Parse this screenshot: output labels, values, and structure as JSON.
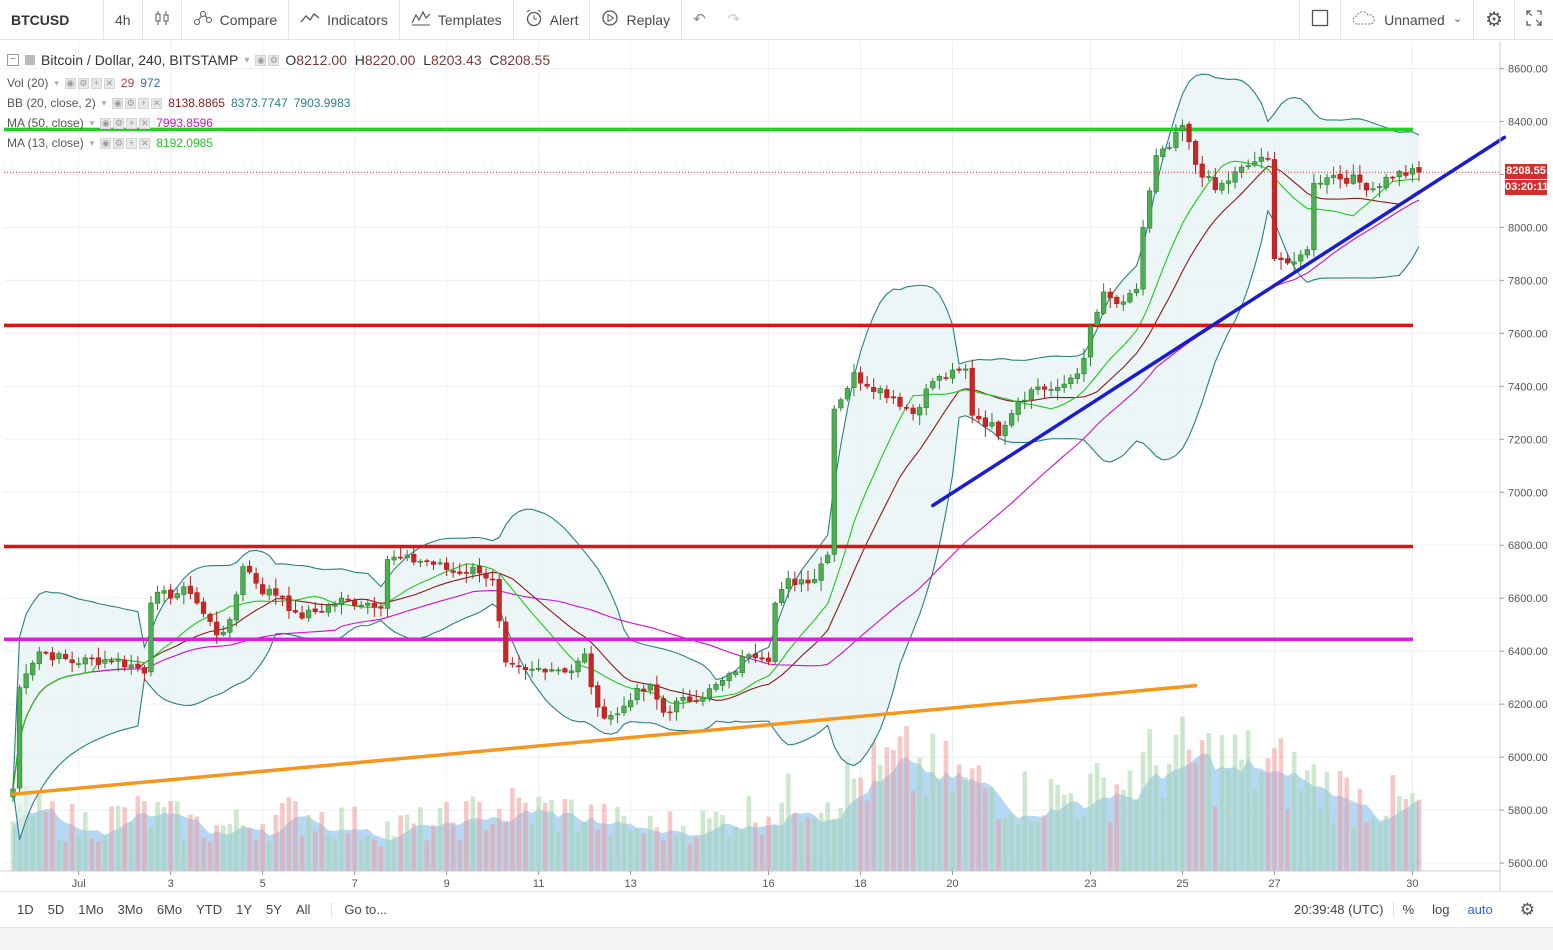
{
  "toolbar": {
    "symbol": "BTCUSD",
    "interval": "4h",
    "compare": "Compare",
    "indicators": "Indicators",
    "templates": "Templates",
    "alert": "Alert",
    "replay": "Replay",
    "layout_name": "Unnamed"
  },
  "legend": {
    "title": "Bitcoin / Dollar, 240, BITSTAMP",
    "o_label": "O",
    "o": "8212.00",
    "h_label": "H",
    "h": "8220.00",
    "l_label": "L",
    "l": "8203.43",
    "c_label": "C",
    "c": "8208.55",
    "vol": {
      "name": "Vol (20)",
      "v1": "29",
      "v2": "972",
      "c1": "#b03a3a",
      "c2": "#2a6fb8"
    },
    "bb": {
      "name": "BB (20, close, 2)",
      "v1": "8138.8865",
      "v2": "8373.7747",
      "v3": "7903.9983",
      "c1": "#8b1a1a",
      "c2": "#2a7f7f",
      "c3": "#2a7f7f"
    },
    "ma50": {
      "name": "MA (50, close)",
      "v1": "7993.8596",
      "c1": "#d010c8"
    },
    "ma13": {
      "name": "MA (13, close)",
      "v1": "8192.0985",
      "c1": "#1ec81e"
    }
  },
  "price_tags": {
    "price": "8208.55",
    "countdown": "03:20:11"
  },
  "bottom": {
    "ranges": [
      "1D",
      "5D",
      "1Mo",
      "3Mo",
      "6Mo",
      "YTD",
      "1Y",
      "5Y",
      "All"
    ],
    "goto": "Go to...",
    "time": "20:39:48 (UTC)",
    "percent": "%",
    "log": "log",
    "auto": "auto"
  },
  "chart_data": {
    "type": "candlestick",
    "title": "Bitcoin / Dollar, 240, BITSTAMP",
    "y_ticks": [
      "8600.00",
      "8400.00",
      "8200.00",
      "8000.00",
      "7800.00",
      "7600.00",
      "7400.00",
      "7200.00",
      "7000.00",
      "6800.00",
      "6600.00",
      "6400.00",
      "6200.00",
      "6000.00",
      "5800.00",
      "5600.00"
    ],
    "ylim": [
      5570,
      8700
    ],
    "x_ticks": [
      {
        "label": "Jul",
        "i": 10
      },
      {
        "label": "3",
        "i": 24
      },
      {
        "label": "5",
        "i": 38
      },
      {
        "label": "7",
        "i": 52
      },
      {
        "label": "9",
        "i": 66
      },
      {
        "label": "11",
        "i": 80
      },
      {
        "label": "13",
        "i": 94
      },
      {
        "label": "16",
        "i": 115
      },
      {
        "label": "18",
        "i": 129
      },
      {
        "label": "20",
        "i": 143
      },
      {
        "label": "23",
        "i": 164
      },
      {
        "label": "25",
        "i": 178
      },
      {
        "label": "27",
        "i": 192
      },
      {
        "label": "30",
        "i": 213
      }
    ],
    "x_count": 215,
    "anchors": [
      [
        0,
        5880
      ],
      [
        1,
        6260
      ],
      [
        2,
        6330
      ],
      [
        4,
        6400
      ],
      [
        9,
        6360
      ],
      [
        15,
        6370
      ],
      [
        20,
        6330
      ],
      [
        21,
        6600
      ],
      [
        27,
        6630
      ],
      [
        29,
        6540
      ],
      [
        31,
        6470
      ],
      [
        33,
        6500
      ],
      [
        35,
        6730
      ],
      [
        38,
        6630
      ],
      [
        41,
        6610
      ],
      [
        43,
        6530
      ],
      [
        45,
        6540
      ],
      [
        50,
        6590
      ],
      [
        56,
        6580
      ],
      [
        57,
        6750
      ],
      [
        63,
        6740
      ],
      [
        67,
        6700
      ],
      [
        71,
        6710
      ],
      [
        73,
        6660
      ],
      [
        75,
        6340
      ],
      [
        78,
        6320
      ],
      [
        81,
        6340
      ],
      [
        85,
        6330
      ],
      [
        87,
        6380
      ],
      [
        89,
        6170
      ],
      [
        92,
        6160
      ],
      [
        94,
        6230
      ],
      [
        97,
        6260
      ],
      [
        99,
        6170
      ],
      [
        101,
        6200
      ],
      [
        106,
        6250
      ],
      [
        109,
        6300
      ],
      [
        112,
        6400
      ],
      [
        115,
        6380
      ],
      [
        116,
        6580
      ],
      [
        118,
        6660
      ],
      [
        122,
        6680
      ],
      [
        124,
        6780
      ],
      [
        125,
        7320
      ],
      [
        128,
        7440
      ],
      [
        131,
        7400
      ],
      [
        134,
        7360
      ],
      [
        137,
        7300
      ],
      [
        140,
        7420
      ],
      [
        145,
        7460
      ],
      [
        146,
        7300
      ],
      [
        150,
        7230
      ],
      [
        153,
        7350
      ],
      [
        156,
        7400
      ],
      [
        159,
        7380
      ],
      [
        163,
        7490
      ],
      [
        164,
        7620
      ],
      [
        166,
        7740
      ],
      [
        169,
        7700
      ],
      [
        171,
        7770
      ],
      [
        172,
        8000
      ],
      [
        174,
        8260
      ],
      [
        176,
        8300
      ],
      [
        178,
        8380
      ],
      [
        180,
        8240
      ],
      [
        183,
        8140
      ],
      [
        186,
        8200
      ],
      [
        189,
        8250
      ],
      [
        191,
        8250
      ],
      [
        192,
        7900
      ],
      [
        195,
        7850
      ],
      [
        197,
        7930
      ],
      [
        198,
        8160
      ],
      [
        200,
        8200
      ],
      [
        204,
        8180
      ],
      [
        207,
        8150
      ],
      [
        210,
        8200
      ],
      [
        214,
        8208
      ]
    ],
    "volume_anchors": [
      [
        0,
        60
      ],
      [
        10,
        45
      ],
      [
        20,
        55
      ],
      [
        30,
        40
      ],
      [
        45,
        55
      ],
      [
        55,
        40
      ],
      [
        65,
        45
      ],
      [
        75,
        60
      ],
      [
        85,
        55
      ],
      [
        95,
        40
      ],
      [
        105,
        45
      ],
      [
        115,
        60
      ],
      [
        125,
        80
      ],
      [
        135,
        100
      ],
      [
        145,
        85
      ],
      [
        155,
        70
      ],
      [
        165,
        75
      ],
      [
        175,
        105
      ],
      [
        185,
        105
      ],
      [
        195,
        90
      ],
      [
        205,
        70
      ],
      [
        214,
        60
      ]
    ],
    "bollinger": {
      "period": 20,
      "mult": 2
    },
    "ma": [
      {
        "name": "MA (50, close)",
        "period": 50
      },
      {
        "name": "MA (13, close)",
        "period": 13
      }
    ],
    "horizontal_lines": [
      {
        "price": 8370,
        "color": "#22d022"
      },
      {
        "price": 7630,
        "color": "#e31212"
      },
      {
        "price": 6795,
        "color": "#e31212"
      },
      {
        "price": 6445,
        "color": "#e01be0"
      }
    ],
    "trend_lines": [
      {
        "color": "#1c1ccf",
        "from": {
          "i": 140,
          "price": 6950
        },
        "to": {
          "i": 227,
          "price": 8340
        }
      },
      {
        "color": "#f5961e",
        "from": {
          "i": 0,
          "price": 5860
        },
        "to": {
          "i": 180,
          "price": 6270
        }
      }
    ],
    "grid": true,
    "colors": {
      "up": "#2e7d32",
      "down": "#b71c1c",
      "bb_line": "#2a7f7f",
      "bb_fill": "#e6f2f2",
      "bb_basis": "#8b1a1a",
      "ma50": "#d010c8",
      "ma13": "#1ec81e",
      "vol_area": "#9fcbef"
    }
  }
}
